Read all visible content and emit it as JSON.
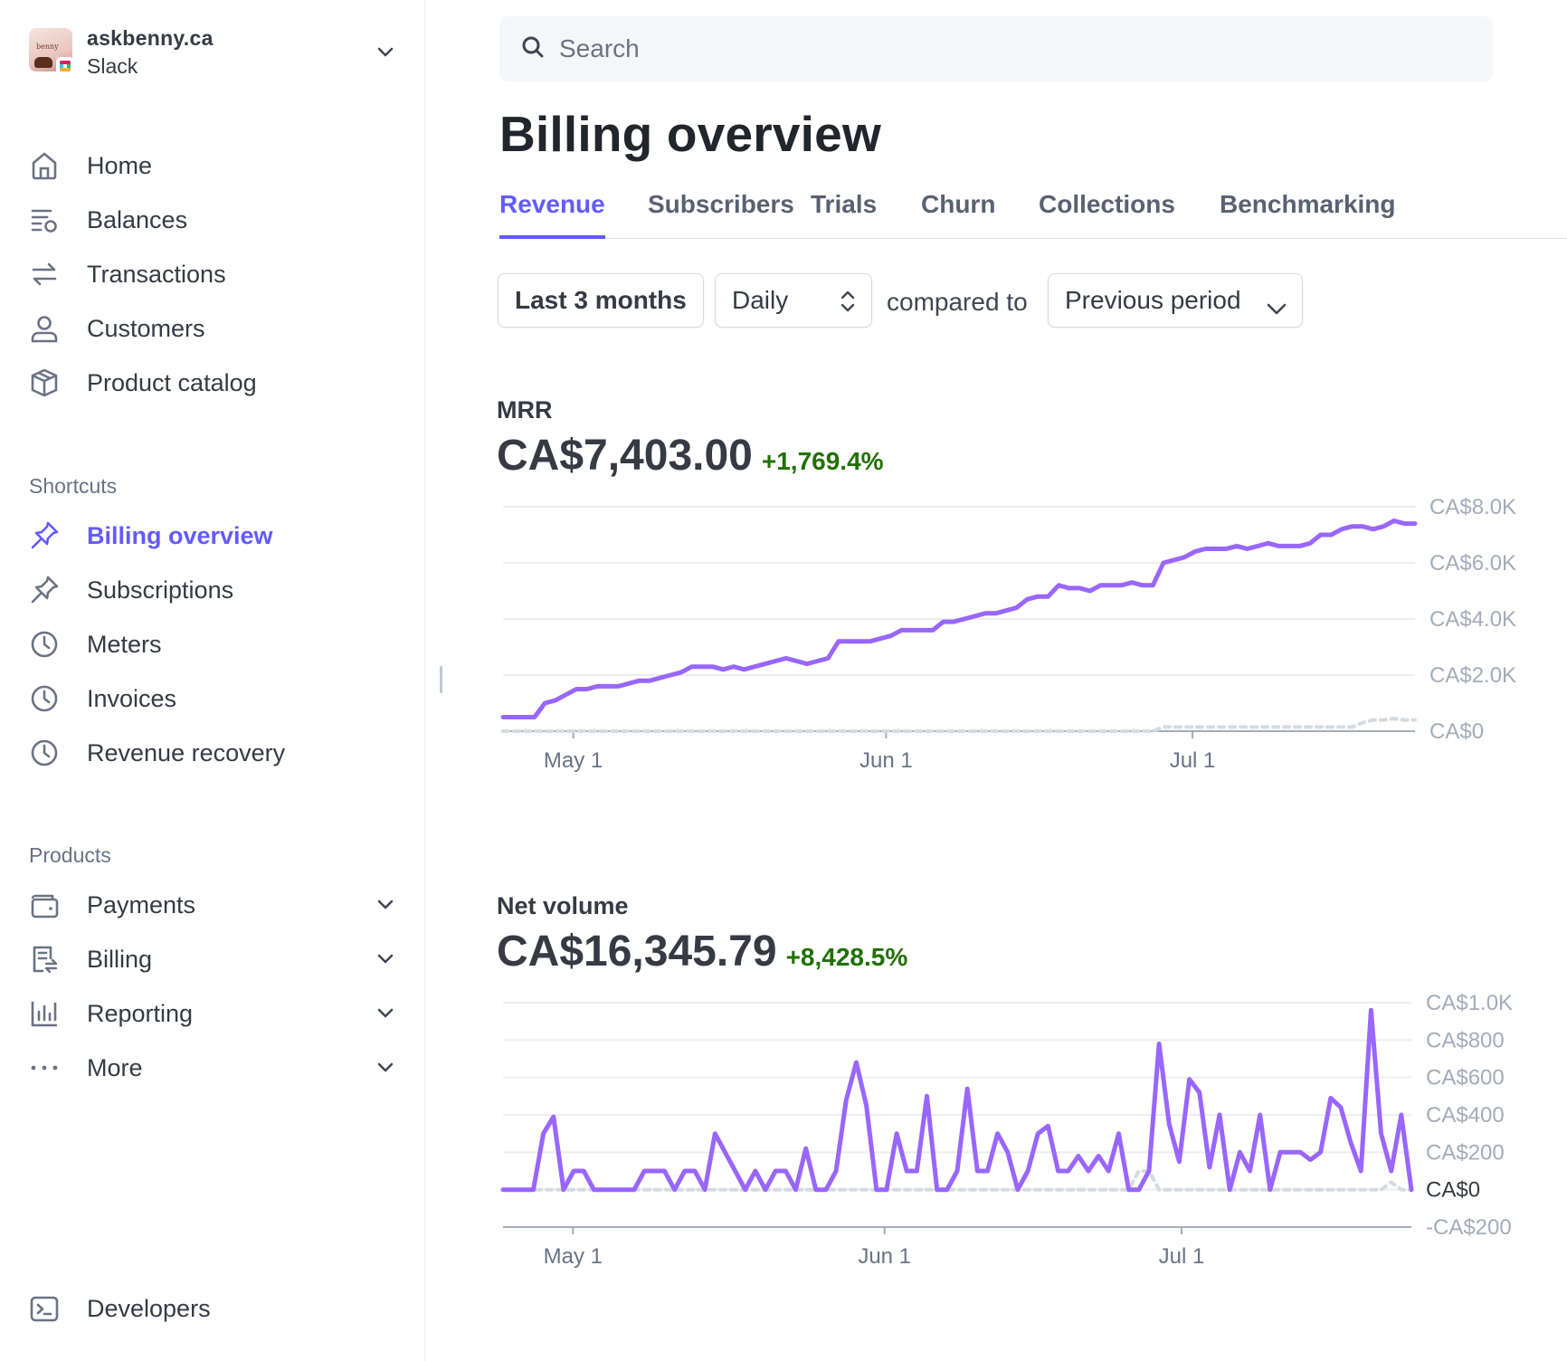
{
  "account": {
    "name": "askbenny.ca",
    "sub": "Slack",
    "logo_text": "benny"
  },
  "nav": [
    {
      "label": "Home",
      "icon": "home-icon"
    },
    {
      "label": "Balances",
      "icon": "balances-icon"
    },
    {
      "label": "Transactions",
      "icon": "transactions-icon"
    },
    {
      "label": "Customers",
      "icon": "customer-icon"
    },
    {
      "label": "Product catalog",
      "icon": "box-icon"
    }
  ],
  "shortcuts": {
    "label": "Shortcuts",
    "items": [
      {
        "label": "Billing overview",
        "icon": "pin-icon",
        "active": true
      },
      {
        "label": "Subscriptions",
        "icon": "pin-icon"
      },
      {
        "label": "Meters",
        "icon": "clock-icon"
      },
      {
        "label": "Invoices",
        "icon": "clock-icon"
      },
      {
        "label": "Revenue recovery",
        "icon": "clock-icon"
      }
    ]
  },
  "products": {
    "label": "Products",
    "items": [
      {
        "label": "Payments",
        "icon": "wallet-icon"
      },
      {
        "label": "Billing",
        "icon": "billing-icon"
      },
      {
        "label": "Reporting",
        "icon": "bar-chart-icon"
      },
      {
        "label": "More",
        "icon": "more-icon"
      }
    ]
  },
  "developers": {
    "label": "Developers",
    "icon": "terminal-icon"
  },
  "search": {
    "placeholder": "Search"
  },
  "page": {
    "title": "Billing overview"
  },
  "tabs": [
    "Revenue",
    "Subscribers",
    "Trials",
    "Churn",
    "Collections",
    "Benchmarking"
  ],
  "filters": {
    "range": "Last 3 months",
    "interval": "Daily",
    "compared_to_label": "compared to",
    "comparison": "Previous period"
  },
  "colors": {
    "accent": "#635bff",
    "series": "#9966ff",
    "positive": "#217005",
    "comparison": "#d5dbe1"
  },
  "metrics": {
    "mrr": {
      "title": "MRR",
      "value": "CA$7,403.00",
      "delta": "+1,769.4%"
    },
    "net_volume": {
      "title": "Net volume",
      "value": "CA$16,345.79",
      "delta": "+8,428.5%"
    }
  },
  "chart_data": [
    {
      "type": "line",
      "title": "MRR",
      "x_ticks": [
        "May 1",
        "Jun 1",
        "Jul 1"
      ],
      "y_ticks": [
        "CA$0",
        "CA$2.0K",
        "CA$4.0K",
        "CA$6.0K",
        "CA$8.0K"
      ],
      "ylim": [
        0,
        8000
      ],
      "series": [
        {
          "name": "MRR",
          "values": [
            500,
            500,
            500,
            500,
            1000,
            1100,
            1300,
            1500,
            1500,
            1600,
            1600,
            1600,
            1700,
            1800,
            1800,
            1900,
            2000,
            2100,
            2300,
            2300,
            2300,
            2200,
            2300,
            2200,
            2300,
            2400,
            2500,
            2600,
            2500,
            2400,
            2500,
            2600,
            3200,
            3200,
            3200,
            3200,
            3300,
            3400,
            3600,
            3600,
            3600,
            3600,
            3900,
            3900,
            4000,
            4100,
            4200,
            4200,
            4300,
            4400,
            4700,
            4800,
            4800,
            5200,
            5100,
            5100,
            5000,
            5200,
            5200,
            5200,
            5300,
            5200,
            5200,
            6000,
            6100,
            6200,
            6400,
            6500,
            6500,
            6500,
            6600,
            6500,
            6600,
            6700,
            6600,
            6600,
            6600,
            6700,
            7000,
            7000,
            7200,
            7300,
            7300,
            7200,
            7300,
            7500,
            7400,
            7400
          ]
        },
        {
          "name": "Previous period",
          "values": [
            0,
            0,
            0,
            0,
            0,
            0,
            0,
            0,
            0,
            0,
            0,
            0,
            0,
            0,
            0,
            0,
            0,
            0,
            0,
            0,
            0,
            0,
            0,
            0,
            0,
            0,
            0,
            0,
            0,
            0,
            0,
            0,
            0,
            0,
            0,
            0,
            0,
            0,
            0,
            0,
            0,
            0,
            0,
            0,
            0,
            0,
            0,
            0,
            0,
            0,
            0,
            0,
            0,
            0,
            0,
            0,
            0,
            0,
            0,
            0,
            0,
            0,
            0,
            150,
            150,
            150,
            150,
            150,
            150,
            150,
            150,
            150,
            150,
            150,
            150,
            150,
            150,
            150,
            150,
            150,
            150,
            150,
            300,
            400,
            400,
            450,
            400,
            400
          ]
        }
      ]
    },
    {
      "type": "line",
      "title": "Net volume",
      "x_ticks": [
        "May 1",
        "Jun 1",
        "Jul 1"
      ],
      "y_ticks": [
        "-CA$200",
        "CA$0",
        "CA$200",
        "CA$400",
        "CA$600",
        "CA$800",
        "CA$1.0K"
      ],
      "ylim": [
        -200,
        1000
      ],
      "series": [
        {
          "name": "Net volume",
          "values": [
            0,
            0,
            0,
            0,
            300,
            390,
            0,
            100,
            100,
            0,
            0,
            0,
            0,
            0,
            100,
            100,
            100,
            0,
            100,
            100,
            0,
            300,
            200,
            100,
            0,
            100,
            0,
            100,
            100,
            0,
            220,
            0,
            0,
            100,
            480,
            680,
            450,
            0,
            0,
            300,
            100,
            100,
            500,
            0,
            0,
            100,
            540,
            100,
            100,
            300,
            200,
            0,
            100,
            300,
            340,
            100,
            100,
            180,
            100,
            180,
            100,
            300,
            0,
            0,
            100,
            780,
            350,
            150,
            590,
            520,
            120,
            400,
            0,
            200,
            100,
            400,
            0,
            200,
            200,
            200,
            160,
            200,
            490,
            440,
            250,
            100,
            960,
            300,
            100,
            400,
            0
          ],
          "note": "daily values"
        },
        {
          "name": "Previous period",
          "values": [
            0,
            0,
            0,
            0,
            0,
            0,
            0,
            0,
            0,
            0,
            0,
            0,
            0,
            0,
            0,
            0,
            0,
            0,
            0,
            0,
            0,
            0,
            0,
            0,
            0,
            0,
            0,
            0,
            0,
            0,
            0,
            0,
            0,
            0,
            0,
            0,
            0,
            0,
            0,
            0,
            0,
            0,
            0,
            0,
            0,
            0,
            0,
            0,
            0,
            0,
            0,
            0,
            0,
            0,
            0,
            0,
            0,
            0,
            0,
            0,
            0,
            0,
            0,
            100,
            100,
            0,
            0,
            0,
            0,
            0,
            0,
            0,
            0,
            0,
            0,
            0,
            0,
            0,
            0,
            0,
            0,
            0,
            0,
            0,
            0,
            0,
            0,
            0,
            40,
            0,
            0
          ]
        }
      ]
    }
  ]
}
